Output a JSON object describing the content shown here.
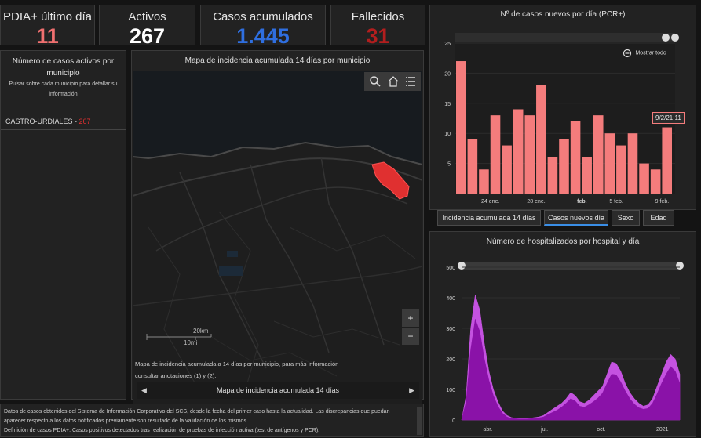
{
  "kpis": [
    {
      "title": "PDIA+ último día",
      "value": "11",
      "color": "#f07070"
    },
    {
      "title": "Activos",
      "value": "267",
      "color": "#ffffff"
    },
    {
      "title": "Casos acumulados",
      "value": "1.445",
      "color": "#2f6fe0"
    },
    {
      "title": "Fallecidos",
      "value": "31",
      "color": "#b21e1e"
    }
  ],
  "active_panel": {
    "title": "Número de casos activos por municipio",
    "subtitle": "Pulsar sobre cada municipio para detallar su información",
    "municipality": "CASTRO-URDIALES",
    "separator": " - ",
    "count": "267"
  },
  "map": {
    "title": "Mapa de incidencia acumulada 14 días por municipio",
    "scale_km": "20km",
    "scale_mi": "10mi",
    "zoom_in": "+",
    "zoom_out": "−",
    "footnote": "Mapa de incidencia acumulada a 14 días por municipio, para más información consultar anotaciones (1) y (2).",
    "nav_label": "Mapa de incidencia acumulada 14 días",
    "nav_prev": "◀",
    "nav_next": "▶"
  },
  "notes": {
    "line1": "Datos de casos obtenidos del Sistema de Información Corporativo del SCS, desde la fecha del primer caso hasta la actualidad. Las discrepancias que puedan aparecer respecto a los datos notificados previamente son resultado de la validación de los mismos.",
    "line2": "Definición de casos PDIA+: Casos positivos detectados tras realización de pruebas de infección activa (test de antígenos y PCR)."
  },
  "tabs": [
    {
      "label": "Incidencia acumulada 14 días",
      "active": false
    },
    {
      "label": "Casos nuevos día",
      "active": true
    },
    {
      "label": "Sexo",
      "active": false
    },
    {
      "label": "Edad",
      "active": false
    }
  ],
  "chart_data": [
    {
      "type": "bar",
      "title": "Nº de casos nuevos por día (PCR+)",
      "show_all_label": "Mostrar todo",
      "tooltip": "9/2/21:11",
      "xlabels": [
        "24 ene.",
        "28 ene.",
        "feb.",
        "5 feb.",
        "9 feb."
      ],
      "ylim": [
        0,
        25
      ],
      "yticks": [
        5,
        10,
        15,
        20,
        25
      ],
      "values": [
        22,
        9,
        4,
        13,
        8,
        14,
        13,
        18,
        6,
        9,
        12,
        6,
        13,
        10,
        8,
        10,
        5,
        4,
        11
      ],
      "color": "#f47c7c"
    },
    {
      "type": "area",
      "title": "Número de hospitalizados por hospital y día",
      "xlabels": [
        "abr.",
        "jul.",
        "oct.",
        "2021"
      ],
      "ylim": [
        0,
        500
      ],
      "yticks": [
        0,
        100,
        200,
        300,
        400,
        500
      ],
      "series": [
        {
          "color": "#c452e0",
          "values": [
            0,
            80,
            300,
            410,
            360,
            250,
            160,
            100,
            60,
            30,
            15,
            8,
            6,
            5,
            5,
            6,
            8,
            10,
            15,
            25,
            35,
            45,
            55,
            70,
            90,
            80,
            60,
            55,
            65,
            80,
            95,
            110,
            150,
            190,
            185,
            160,
            120,
            90,
            70,
            55,
            45,
            50,
            70,
            110,
            150,
            190,
            215,
            200,
            150
          ]
        },
        {
          "color": "#8a12a8",
          "values": [
            0,
            60,
            230,
            330,
            290,
            200,
            130,
            80,
            45,
            22,
            10,
            5,
            4,
            3,
            3,
            4,
            5,
            7,
            10,
            18,
            25,
            32,
            42,
            55,
            70,
            62,
            45,
            42,
            50,
            60,
            72,
            88,
            120,
            150,
            148,
            125,
            95,
            70,
            52,
            40,
            35,
            38,
            55,
            85,
            120,
            150,
            175,
            160,
            120
          ]
        }
      ]
    }
  ]
}
